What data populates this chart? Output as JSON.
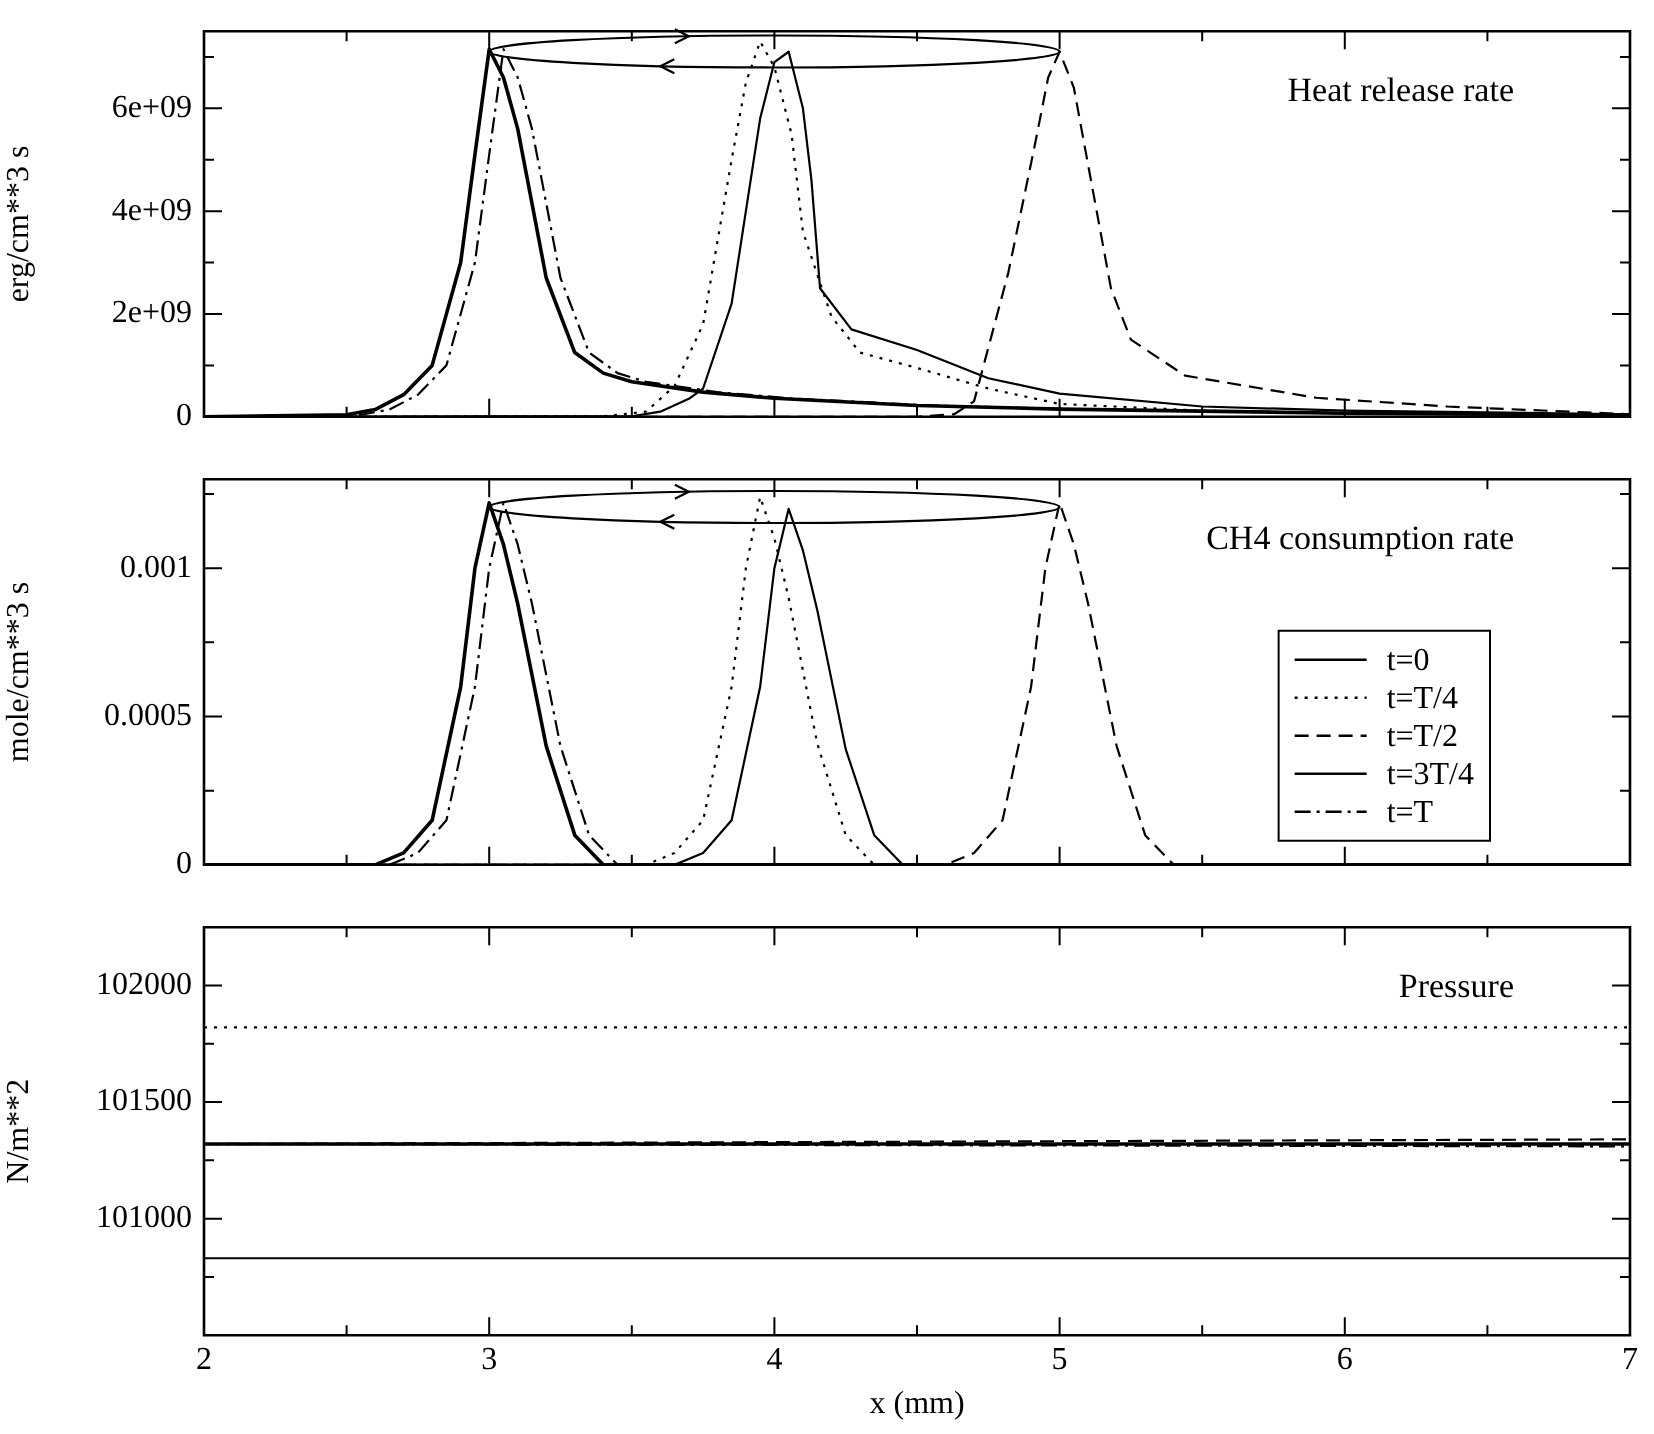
{
  "chart_data": [
    {
      "type": "line",
      "title": "Heat release rate",
      "ylabel": "erg/cm**3 s",
      "xlim": [
        2,
        7
      ],
      "xticks": [
        2,
        {
          "value": 2.5,
          "label": null
        },
        3,
        {
          "value": 3.5,
          "label": null
        },
        4,
        {
          "value": 4.5,
          "label": null
        },
        5,
        {
          "value": 5.5,
          "label": null
        },
        6,
        {
          "value": 6.5,
          "label": null
        },
        7
      ],
      "ylim": [
        0,
        7500000000.0
      ],
      "yticks": [
        0,
        {
          "value": 1000000000.0,
          "label": null
        },
        {
          "value": 2000000000.0,
          "label": "2e+09"
        },
        {
          "value": 3000000000.0,
          "label": null
        },
        {
          "value": 4000000000.0,
          "label": "4e+09"
        },
        {
          "value": 5000000000.0,
          "label": null
        },
        {
          "value": 6000000000.0,
          "label": "6e+09"
        },
        {
          "value": 7000000000.0,
          "label": null
        }
      ],
      "tick_labels": "y",
      "marker": "none",
      "series": [
        {
          "color": "#000000",
          "line_style": "solid",
          "x": [
            2,
            2.5,
            2.6,
            2.7,
            2.8,
            2.9,
            2.95,
            3.0,
            3.05,
            3.1,
            3.2,
            3.3,
            3.4,
            3.5,
            3.75,
            4,
            4.5,
            5,
            6,
            7
          ],
          "values": [
            0,
            40000000.0,
            140000000.0,
            430000000.0,
            1000000000.0,
            3000000000.0,
            5100000000.0,
            7150000000.0,
            6600000000.0,
            5600000000.0,
            2700000000.0,
            1250000000.0,
            850000000.0,
            680000000.0,
            480000000.0,
            360000000.0,
            220000000.0,
            150000000.0,
            70000000.0,
            30000000.0
          ]
        },
        {
          "color": "#000000",
          "line_style": "dotted",
          "x": [
            2,
            3.4,
            3.55,
            3.65,
            3.75,
            3.85,
            3.9,
            3.95,
            4.0,
            4.06,
            4.1,
            4.2,
            4.3,
            4.5,
            4.75,
            5,
            5.5,
            6,
            7
          ],
          "values": [
            0,
            10000000.0,
            100000000.0,
            600000000.0,
            1800000000.0,
            5000000000.0,
            6500000000.0,
            7300000000.0,
            6800000000.0,
            5500000000.0,
            3600000000.0,
            1950000000.0,
            1250000000.0,
            950000000.0,
            550000000.0,
            250000000.0,
            120000000.0,
            70000000.0,
            30000000.0
          ]
        },
        {
          "color": "#000000",
          "line_style": "dashed",
          "x": [
            2,
            4.5,
            4.63,
            4.7,
            4.82,
            4.91,
            4.96,
            5.0,
            5.05,
            5.11,
            5.18,
            5.25,
            5.44,
            5.9,
            6.36,
            7
          ],
          "values": [
            0,
            0,
            50000000.0,
            300000000.0,
            2800000000.0,
            5200000000.0,
            6600000000.0,
            7100000000.0,
            6400000000.0,
            4600000000.0,
            2500000000.0,
            1500000000.0,
            800000000.0,
            370000000.0,
            200000000.0,
            50000000.0
          ]
        },
        {
          "color": "#000000",
          "line_style": "solid",
          "x": [
            2,
            3.5,
            3.6,
            3.7,
            3.75,
            3.85,
            3.9,
            3.95,
            4.0,
            4.05,
            4.1,
            4.13,
            4.16,
            4.27,
            4.5,
            4.75,
            5,
            5.5,
            6,
            7
          ],
          "values": [
            0,
            10000000.0,
            100000000.0,
            350000000.0,
            550000000.0,
            2200000000.0,
            4000000000.0,
            5800000000.0,
            6900000000.0,
            7100000000.0,
            6000000000.0,
            4600000000.0,
            2500000000.0,
            1700000000.0,
            1300000000.0,
            750000000.0,
            450000000.0,
            200000000.0,
            120000000.0,
            50000000.0
          ]
        },
        {
          "color": "#000000",
          "line_style": "dashdot",
          "x": [
            2,
            2.55,
            2.65,
            2.75,
            2.85,
            2.95,
            3.0,
            3.05,
            3.1,
            3.15,
            3.25,
            3.35,
            3.45,
            3.55,
            3.8,
            4.05,
            4.55,
            5.05,
            6,
            7
          ],
          "values": [
            0,
            40000000.0,
            140000000.0,
            430000000.0,
            1000000000.0,
            3000000000.0,
            5100000000.0,
            7150000000.0,
            6600000000.0,
            5600000000.0,
            2700000000.0,
            1250000000.0,
            850000000.0,
            680000000.0,
            480000000.0,
            360000000.0,
            220000000.0,
            150000000.0,
            70000000.0,
            30000000.0
          ]
        }
      ]
    },
    {
      "type": "line",
      "title": "CH4 consumption rate",
      "ylabel": "mole/cm**3 s",
      "xlim": [
        2,
        7
      ],
      "xticks": [
        2,
        {
          "value": 2.5,
          "label": null
        },
        3,
        {
          "value": 3.5,
          "label": null
        },
        4,
        {
          "value": 4.5,
          "label": null
        },
        5,
        {
          "value": 5.5,
          "label": null
        },
        6,
        {
          "value": 6.5,
          "label": null
        },
        7
      ],
      "ylim": [
        0,
        0.0013
      ],
      "yticks": [
        0,
        {
          "value": 0.00025,
          "label": null
        },
        0.0005,
        {
          "value": 0.00075,
          "label": null
        },
        0.001,
        {
          "value": 0.00125,
          "label": null
        }
      ],
      "tick_labels": "y",
      "marker": "none",
      "legend": "bottom right",
      "series": [
        {
          "name": "t=0",
          "color": "#000000",
          "line_style": "solid",
          "x": [
            2,
            2.6,
            2.7,
            2.8,
            2.9,
            2.95,
            3.0,
            3.05,
            3.1,
            3.2,
            3.3,
            3.4,
            3.5,
            7
          ],
          "values": [
            0,
            0,
            4e-05,
            0.00015,
            0.0006,
            0.001,
            0.00122,
            0.00108,
            0.00088,
            0.0004,
            0.0001,
            0,
            0,
            0
          ]
        },
        {
          "name": "t=T/4",
          "color": "#000000",
          "line_style": "dotted",
          "x": [
            2,
            3.55,
            3.65,
            3.75,
            3.85,
            3.9,
            3.95,
            4.0,
            4.05,
            4.15,
            4.25,
            4.35,
            4.45,
            7
          ],
          "values": [
            0,
            0,
            4e-05,
            0.00015,
            0.0006,
            0.001,
            0.00124,
            0.0011,
            0.0009,
            0.00041,
            0.0001,
            0,
            0,
            0
          ]
        },
        {
          "name": "t=T/2",
          "color": "#000000",
          "line_style": "dashed",
          "x": [
            2,
            4.6,
            4.7,
            4.8,
            4.9,
            4.95,
            5.0,
            5.05,
            5.1,
            5.2,
            5.3,
            5.4,
            5.5,
            7
          ],
          "values": [
            0,
            0,
            4e-05,
            0.00015,
            0.0006,
            0.001,
            0.00122,
            0.00108,
            0.00088,
            0.0004,
            0.0001,
            0,
            0,
            0
          ]
        },
        {
          "name": "t=3T/4",
          "color": "#000000",
          "line_style": "solid",
          "x": [
            2,
            3.65,
            3.75,
            3.85,
            3.95,
            4.0,
            4.05,
            4.1,
            4.15,
            4.25,
            4.35,
            4.45,
            4.55,
            7
          ],
          "values": [
            0,
            0,
            4e-05,
            0.00015,
            0.0006,
            0.001,
            0.0012,
            0.00106,
            0.00086,
            0.00039,
            0.0001,
            0,
            0,
            0
          ]
        },
        {
          "name": "t=T",
          "color": "#000000",
          "line_style": "dashdot",
          "x": [
            2,
            2.65,
            2.75,
            2.85,
            2.95,
            3.0,
            3.05,
            3.1,
            3.15,
            3.25,
            3.35,
            3.45,
            3.55,
            7
          ],
          "values": [
            0,
            0,
            4e-05,
            0.00015,
            0.0006,
            0.001,
            0.00122,
            0.00108,
            0.00088,
            0.0004,
            0.0001,
            0,
            0,
            0
          ]
        }
      ]
    },
    {
      "type": "line",
      "title": "Pressure",
      "xlabel": "x (mm)",
      "ylabel": "N/m**2",
      "xlim": [
        2,
        7
      ],
      "xticks": [
        2,
        {
          "value": 2.5,
          "label": null
        },
        3,
        {
          "value": 3.5,
          "label": null
        },
        4,
        {
          "value": 4.5,
          "label": null
        },
        5,
        {
          "value": 5.5,
          "label": null
        },
        6,
        {
          "value": 6.5,
          "label": null
        },
        7
      ],
      "ylim": [
        100500,
        102250
      ],
      "yticks": [
        {
          "value": 100750,
          "label": null
        },
        101000,
        {
          "value": 101250,
          "label": null
        },
        101500,
        {
          "value": 101750,
          "label": null
        },
        102000
      ],
      "marker": "none",
      "series": [
        {
          "color": "#000000",
          "line_style": "solid",
          "x": [
            2,
            7
          ],
          "values": [
            101320,
            101320
          ]
        },
        {
          "color": "#000000",
          "line_style": "dotted",
          "x": [
            2,
            7
          ],
          "values": [
            101820,
            101820
          ]
        },
        {
          "color": "#000000",
          "line_style": "dashed",
          "x": [
            2,
            7
          ],
          "values": [
            101320,
            101340
          ]
        },
        {
          "color": "#000000",
          "line_style": "solid",
          "x": [
            2,
            7
          ],
          "values": [
            100830,
            100830
          ]
        },
        {
          "color": "#000000",
          "line_style": "dashdot",
          "x": [
            2,
            7
          ],
          "values": [
            101320,
            101310
          ]
        }
      ]
    }
  ]
}
